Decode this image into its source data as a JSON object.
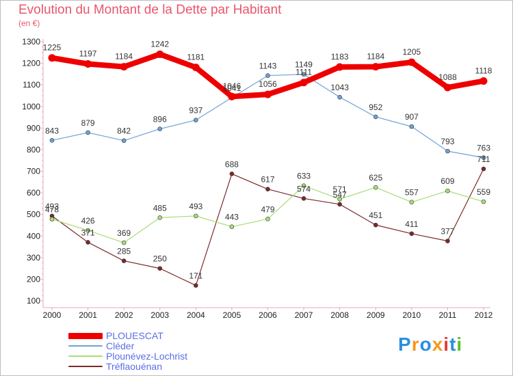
{
  "title": "Evolution du Montant de la Dette par Habitant",
  "unit": "(en €)",
  "logo": {
    "text": "Proxiti",
    "letter_colors": [
      "#2a8fe0",
      "#f39a1e",
      "#2a8fe0",
      "#f39a1e",
      "#e23a3a",
      "#2a8fe0",
      "#5cbf2a"
    ]
  },
  "chart_data": {
    "type": "line",
    "title": "Evolution du Montant de la Dette par Habitant",
    "ylabel": "(en €)",
    "xlabel": "",
    "x": [
      "2000",
      "2001",
      "2002",
      "2003",
      "2004",
      "2005",
      "2006",
      "2007",
      "2008",
      "2009",
      "2010",
      "2011",
      "2012"
    ],
    "ylim": [
      100,
      1300
    ],
    "yticks": [
      100,
      200,
      300,
      400,
      500,
      600,
      700,
      800,
      900,
      1000,
      1100,
      1200,
      1300
    ],
    "grid": false,
    "legend": "bottom-left",
    "series": [
      {
        "name": "PLOUESCAT",
        "color": "#ee0000",
        "values": [
          1225,
          1197,
          1184,
          1242,
          1181,
          1046,
          1056,
          1111,
          1183,
          1184,
          1205,
          1088,
          1118
        ]
      },
      {
        "name": "Cléder",
        "color": "#6ca2d6",
        "values": [
          843,
          879,
          842,
          896,
          937,
          1041,
          1143,
          1149,
          1043,
          952,
          907,
          793,
          763
        ]
      },
      {
        "name": "Plounévez-Lochrist",
        "color": "#a8dc78",
        "values": [
          478,
          426,
          369,
          485,
          493,
          443,
          479,
          633,
          571,
          625,
          557,
          609,
          559
        ]
      },
      {
        "name": "Tréflaouénan",
        "color": "#7a2a2a",
        "values": [
          493,
          371,
          285,
          250,
          171,
          688,
          617,
          574,
          547,
          451,
          411,
          377,
          711
        ]
      }
    ]
  }
}
